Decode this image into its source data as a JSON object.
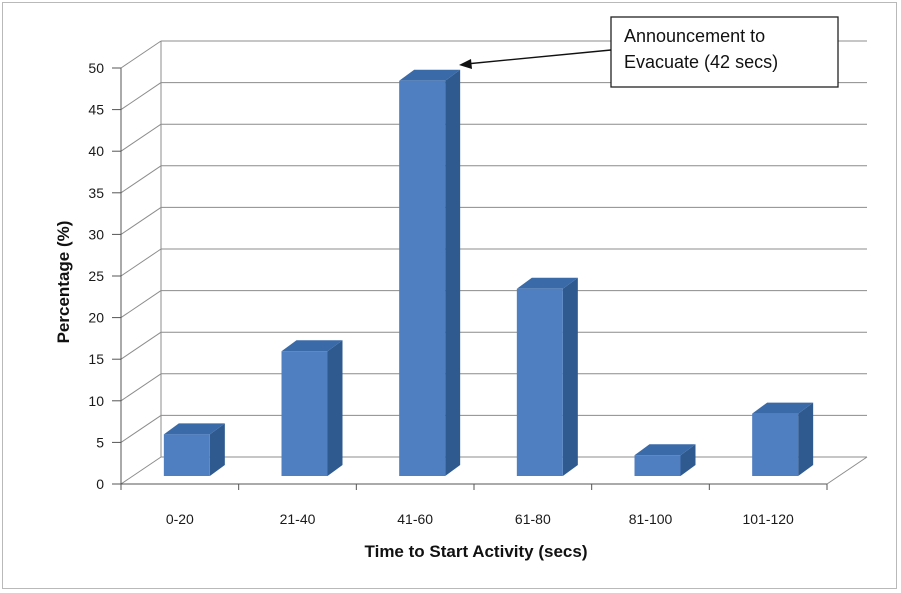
{
  "chart_data": {
    "type": "bar",
    "categories": [
      "0-20",
      "21-40",
      "41-60",
      "61-80",
      "81-100",
      "101-120"
    ],
    "values": [
      5,
      15,
      47.5,
      22.5,
      2.5,
      7.5
    ],
    "xlabel": "Time to Start Activity (secs)",
    "ylabel": "Percentage (%)",
    "ylim": [
      0,
      50
    ],
    "yticks": [
      0,
      5,
      10,
      15,
      20,
      25,
      30,
      35,
      40,
      45,
      50
    ],
    "grid": true,
    "style": "3d-column",
    "colors": {
      "bar_front": "#4f7fc0",
      "bar_side": "#2f5a8f",
      "bar_top": "#3a6aa8",
      "grid": "#8c8c8c"
    },
    "annotation": {
      "lines": [
        "Announcement to",
        "Evacuate (42 secs)"
      ],
      "target_category": "41-60"
    }
  }
}
